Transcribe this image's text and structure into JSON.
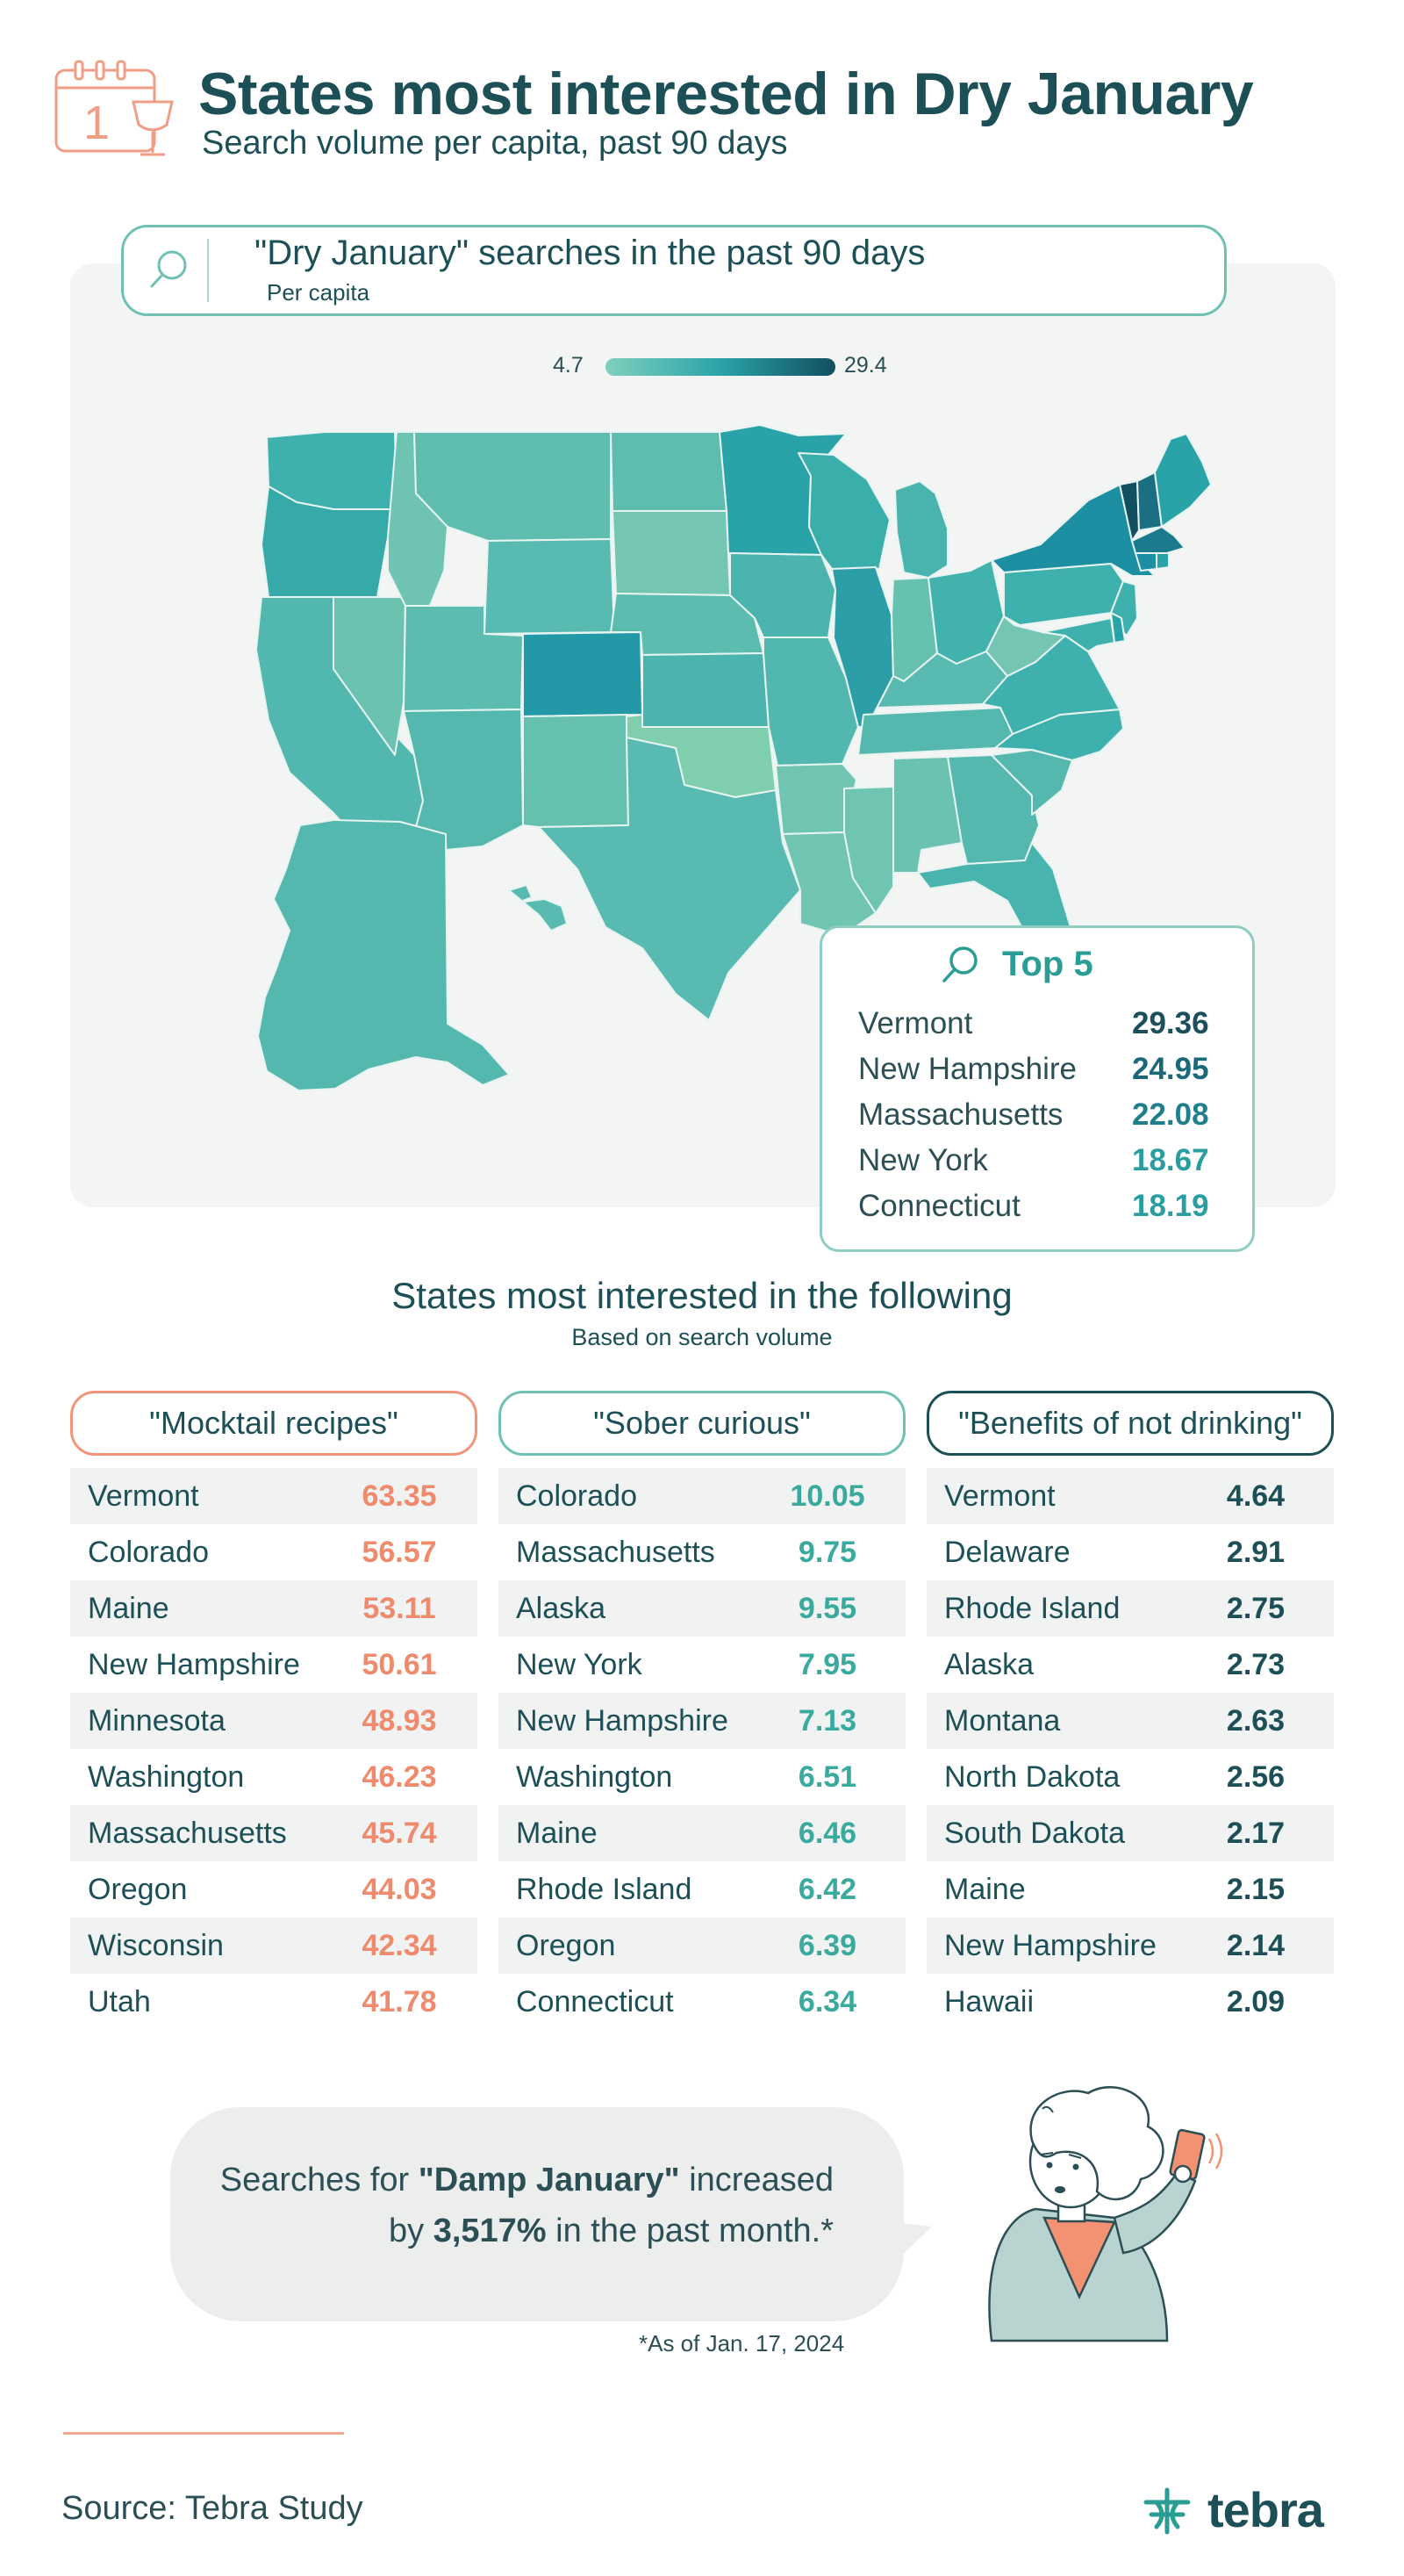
{
  "header": {
    "title": "States most interested in Dry January",
    "subtitle": "Search volume per capita, past 90 days",
    "calendar_day": "1"
  },
  "map": {
    "search_title": "\"Dry January\" searches in the past 90 days",
    "search_sub": "Per capita",
    "scale_min": "4.7",
    "scale_max": "29.4",
    "colors": {
      "low": "#7fd0bd",
      "mid": "#2aa3a8",
      "high": "#124f60"
    },
    "states": [
      {
        "name": "Washington",
        "color": "#3eb0ad"
      },
      {
        "name": "Oregon",
        "color": "#36aaa9"
      },
      {
        "name": "California",
        "color": "#52b7ae"
      },
      {
        "name": "Nevada",
        "color": "#6cc2b1"
      },
      {
        "name": "Idaho",
        "color": "#6ec3b3"
      },
      {
        "name": "Montana",
        "color": "#5fbdb0"
      },
      {
        "name": "Wyoming",
        "color": "#58bab0"
      },
      {
        "name": "Utah",
        "color": "#5cbcb0"
      },
      {
        "name": "Arizona",
        "color": "#55b8ae"
      },
      {
        "name": "Colorado",
        "color": "#2399a8"
      },
      {
        "name": "New Mexico",
        "color": "#66c0b0"
      },
      {
        "name": "North Dakota",
        "color": "#5fbdb0"
      },
      {
        "name": "South Dakota",
        "color": "#74c6b2"
      },
      {
        "name": "Nebraska",
        "color": "#5cbcb0"
      },
      {
        "name": "Kansas",
        "color": "#4cb4ae"
      },
      {
        "name": "Oklahoma",
        "color": "#7fcfae"
      },
      {
        "name": "Texas",
        "color": "#58bab0"
      },
      {
        "name": "Minnesota",
        "color": "#2aa3a8"
      },
      {
        "name": "Iowa",
        "color": "#4cb4ae"
      },
      {
        "name": "Missouri",
        "color": "#52b7ae"
      },
      {
        "name": "Arkansas",
        "color": "#70c5b2"
      },
      {
        "name": "Louisiana",
        "color": "#70c5b2"
      },
      {
        "name": "Wisconsin",
        "color": "#3aaeab"
      },
      {
        "name": "Illinois",
        "color": "#2c9ea8"
      },
      {
        "name": "Michigan",
        "color": "#48b4ad"
      },
      {
        "name": "Indiana",
        "color": "#66c1b1"
      },
      {
        "name": "Ohio",
        "color": "#42b2ad"
      },
      {
        "name": "Kentucky",
        "color": "#58bab0"
      },
      {
        "name": "Tennessee",
        "color": "#55b8ae"
      },
      {
        "name": "Mississippi",
        "color": "#70c5b2"
      },
      {
        "name": "Alabama",
        "color": "#6cc2b1"
      },
      {
        "name": "Georgia",
        "color": "#55b8ae"
      },
      {
        "name": "Florida",
        "color": "#48b4ad"
      },
      {
        "name": "South Carolina",
        "color": "#55b8ae"
      },
      {
        "name": "North Carolina",
        "color": "#3eb0ad"
      },
      {
        "name": "Virginia",
        "color": "#3eb0ad"
      },
      {
        "name": "West Virginia",
        "color": "#74c6b2"
      },
      {
        "name": "Pennsylvania",
        "color": "#3eb0ad"
      },
      {
        "name": "New York",
        "color": "#1d8fa2"
      },
      {
        "name": "Vermont",
        "color": "#124f60"
      },
      {
        "name": "New Hampshire",
        "color": "#1a6f82"
      },
      {
        "name": "Maine",
        "color": "#2aa3a8"
      },
      {
        "name": "Massachusetts",
        "color": "#1b7b8d"
      },
      {
        "name": "Connecticut",
        "color": "#1d8fa2"
      },
      {
        "name": "Rhode Island",
        "color": "#2aa3a8"
      },
      {
        "name": "New Jersey",
        "color": "#3eb0ad"
      },
      {
        "name": "Delaware",
        "color": "#2aa3a8"
      },
      {
        "name": "Maryland",
        "color": "#3eb0ad"
      },
      {
        "name": "Alaska",
        "color": "#55b8ae"
      },
      {
        "name": "Hawaii",
        "color": "#58bab0"
      }
    ]
  },
  "top5": {
    "title": "Top 5",
    "items": [
      {
        "name": "Vermont",
        "value": "29.36",
        "color": "#1b4f5c"
      },
      {
        "name": "New Hampshire",
        "value": "24.95",
        "color": "#1b6878"
      },
      {
        "name": "Massachusetts",
        "value": "22.08",
        "color": "#1f7f8c"
      },
      {
        "name": "New York",
        "value": "18.67",
        "color": "#2a9da0"
      },
      {
        "name": "Connecticut",
        "value": "18.19",
        "color": "#2a9da0"
      }
    ]
  },
  "section": {
    "title": "States most interested in the following",
    "subtitle": "Based on search volume"
  },
  "tables": [
    {
      "heading": "\"Mocktail recipes\"",
      "border": "#f1957a",
      "value_color": "#ef8a6c",
      "rows": [
        {
          "name": "Vermont",
          "value": "63.35"
        },
        {
          "name": "Colorado",
          "value": "56.57"
        },
        {
          "name": "Maine",
          "value": "53.11"
        },
        {
          "name": "New Hampshire",
          "value": "50.61"
        },
        {
          "name": "Minnesota",
          "value": "48.93"
        },
        {
          "name": "Washington",
          "value": "46.23"
        },
        {
          "name": "Massachusetts",
          "value": "45.74"
        },
        {
          "name": "Oregon",
          "value": "44.03"
        },
        {
          "name": "Wisconsin",
          "value": "42.34"
        },
        {
          "name": "Utah",
          "value": "41.78"
        }
      ]
    },
    {
      "heading": "\"Sober curious\"",
      "border": "#6ec1b3",
      "value_color": "#3aa99e",
      "rows": [
        {
          "name": "Colorado",
          "value": "10.05"
        },
        {
          "name": "Massachusetts",
          "value": "9.75"
        },
        {
          "name": "Alaska",
          "value": "9.55"
        },
        {
          "name": "New York",
          "value": "7.95"
        },
        {
          "name": "New Hampshire",
          "value": "7.13"
        },
        {
          "name": "Washington",
          "value": "6.51"
        },
        {
          "name": "Maine",
          "value": "6.46"
        },
        {
          "name": "Rhode Island",
          "value": "6.42"
        },
        {
          "name": "Oregon",
          "value": "6.39"
        },
        {
          "name": "Connecticut",
          "value": "6.34"
        }
      ]
    },
    {
      "heading": "\"Benefits of not drinking\"",
      "border": "#1d4f56",
      "value_color": "#1d4f56",
      "rows": [
        {
          "name": "Vermont",
          "value": "4.64"
        },
        {
          "name": "Delaware",
          "value": "2.91"
        },
        {
          "name": "Rhode Island",
          "value": "2.75"
        },
        {
          "name": "Alaska",
          "value": "2.73"
        },
        {
          "name": "Montana",
          "value": "2.63"
        },
        {
          "name": "North Dakota",
          "value": "2.56"
        },
        {
          "name": "South Dakota",
          "value": "2.17"
        },
        {
          "name": "Maine",
          "value": "2.15"
        },
        {
          "name": "New Hampshire",
          "value": "2.14"
        },
        {
          "name": "Hawaii",
          "value": "2.09"
        }
      ]
    }
  ],
  "callout": {
    "prefix": "Searches for ",
    "highlight": "\"Damp January\"",
    "suffix": " increased",
    "line2_prefix": "by ",
    "line2_highlight": "3,517%",
    "line2_suffix": " in the past month.*",
    "footnote": "*As of Jan. 17, 2024"
  },
  "footer": {
    "source": "Source: Tebra Study",
    "brand": "tebra"
  },
  "chart_data": [
    {
      "type": "table",
      "title": "\"Dry January\" searches in the past 90 days",
      "subtitle": "Per capita",
      "categories": [
        "Vermont",
        "New Hampshire",
        "Massachusetts",
        "New York",
        "Connecticut"
      ],
      "values": [
        29.36,
        24.95,
        22.08,
        18.67,
        18.19
      ],
      "scale_range": [
        4.7,
        29.4
      ]
    },
    {
      "type": "table",
      "title": "\"Mocktail recipes\"",
      "categories": [
        "Vermont",
        "Colorado",
        "Maine",
        "New Hampshire",
        "Minnesota",
        "Washington",
        "Massachusetts",
        "Oregon",
        "Wisconsin",
        "Utah"
      ],
      "values": [
        63.35,
        56.57,
        53.11,
        50.61,
        48.93,
        46.23,
        45.74,
        44.03,
        42.34,
        41.78
      ]
    },
    {
      "type": "table",
      "title": "\"Sober curious\"",
      "categories": [
        "Colorado",
        "Massachusetts",
        "Alaska",
        "New York",
        "New Hampshire",
        "Washington",
        "Maine",
        "Rhode Island",
        "Oregon",
        "Connecticut"
      ],
      "values": [
        10.05,
        9.75,
        9.55,
        7.95,
        7.13,
        6.51,
        6.46,
        6.42,
        6.39,
        6.34
      ]
    },
    {
      "type": "table",
      "title": "\"Benefits of not drinking\"",
      "categories": [
        "Vermont",
        "Delaware",
        "Rhode Island",
        "Alaska",
        "Montana",
        "North Dakota",
        "South Dakota",
        "Maine",
        "New Hampshire",
        "Hawaii"
      ],
      "values": [
        4.64,
        2.91,
        2.75,
        2.73,
        2.63,
        2.56,
        2.17,
        2.15,
        2.14,
        2.09
      ]
    }
  ]
}
